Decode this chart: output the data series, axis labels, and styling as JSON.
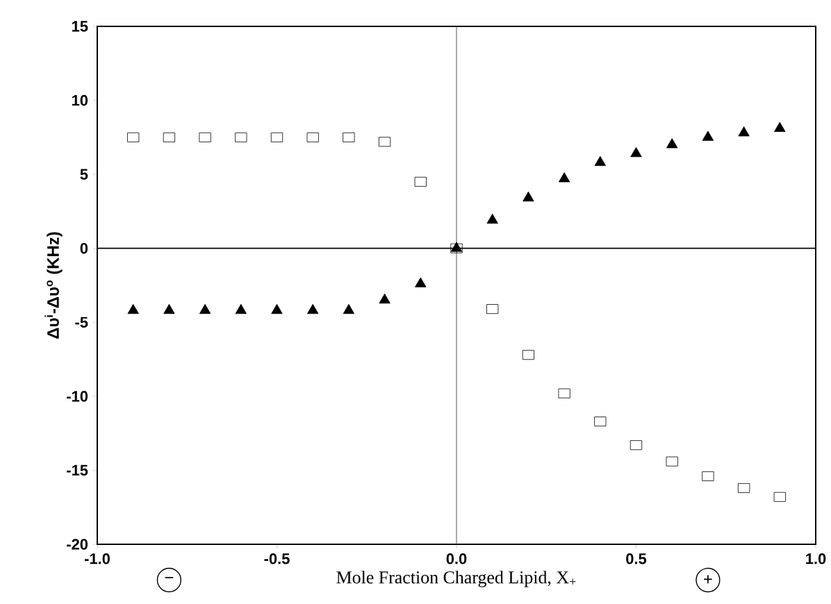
{
  "chart_data": {
    "type": "scatter",
    "xlabel": "Mole Fraction Charged Lipid, X$_{+}$",
    "ylabel": "Δυ$^{i}$-Δυ$^{o}$    (KHz)",
    "x": [
      -0.9,
      -0.8,
      -0.7,
      -0.6,
      -0.5,
      -0.4,
      -0.3,
      -0.2,
      -0.1,
      0.0,
      0.1,
      0.2,
      0.3,
      0.4,
      0.5,
      0.6,
      0.7,
      0.8,
      0.9
    ],
    "series": [
      {
        "color": "#000000",
        "marker": "square",
        "values": [
          7.5,
          7.5,
          7.5,
          7.5,
          7.5,
          7.5,
          7.5,
          7.2,
          4.5,
          0.0,
          -4.1,
          -7.2,
          -9.8,
          -11.7,
          -13.3,
          -14.4,
          -15.4,
          -16.2,
          -16.8
        ]
      },
      {
        "color": "#000000",
        "marker": "triangle",
        "values": [
          -4.2,
          -4.2,
          -4.2,
          -4.2,
          -4.2,
          -4.2,
          -4.2,
          -3.5,
          -2.4,
          0.0,
          1.9,
          3.4,
          4.7,
          5.8,
          6.4,
          7.0,
          7.5,
          7.8,
          8.1
        ]
      }
    ],
    "xlim": [
      -1.0,
      1.0
    ],
    "xticks": [
      {
        "value": -1.0,
        "label": "-1.0"
      },
      {
        "value": -0.5,
        "label": "-0.5"
      },
      {
        "value": 0.0,
        "label": "0.0"
      },
      {
        "value": 0.5,
        "label": "0.5"
      },
      {
        "value": 1.0,
        "label": "1.0"
      }
    ],
    "ylim": [
      -20,
      15
    ],
    "yticks": [
      -20,
      -15,
      -10,
      -5,
      0,
      5,
      10,
      15
    ],
    "ref_lines": [
      {
        "axis": "x",
        "value": 0,
        "color": "#555555"
      },
      {
        "axis": "y",
        "value": 0,
        "color": "#000000"
      }
    ],
    "annotations": [
      "−",
      "+"
    ],
    "grid": false
  }
}
